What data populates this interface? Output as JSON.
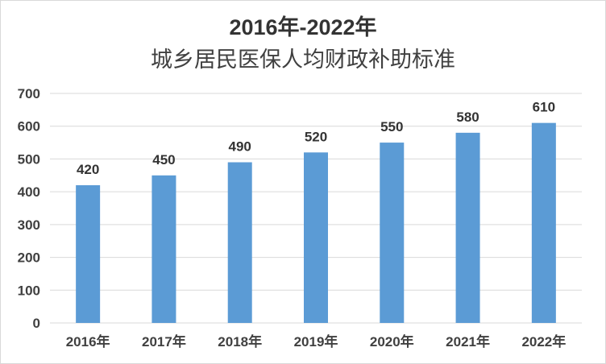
{
  "chart_data": {
    "type": "bar",
    "title": "2016年-2022年",
    "subtitle": "城乡居民医保人均财政补助标准",
    "xlabel": "",
    "ylabel": "",
    "categories": [
      "2016年",
      "2017年",
      "2018年",
      "2019年",
      "2020年",
      "2021年",
      "2022年"
    ],
    "values": [
      420,
      450,
      490,
      520,
      550,
      580,
      610
    ],
    "data_labels": [
      "420",
      "450",
      "490",
      "520",
      "550",
      "580",
      "610"
    ],
    "ylim": [
      0,
      700
    ],
    "yticks": [
      0,
      100,
      200,
      300,
      400,
      500,
      600,
      700
    ],
    "grid": true,
    "legend": "none",
    "colors": {
      "bar": "#5b9bd5",
      "grid": "#d9d9d9",
      "text": "#404040"
    }
  }
}
